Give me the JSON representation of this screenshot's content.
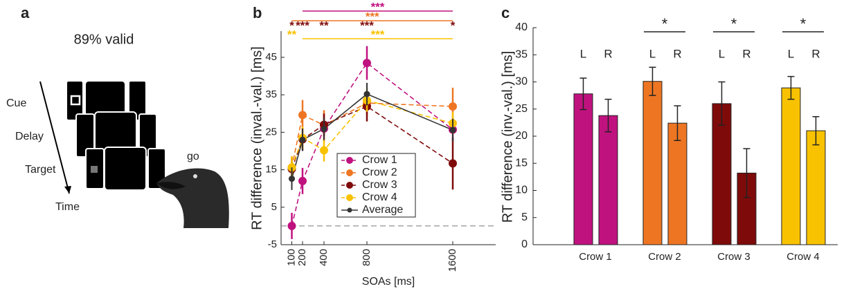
{
  "panel_labels": [
    "a",
    "b",
    "c"
  ],
  "panel_a": {
    "validity": "89% valid",
    "steps": [
      "Cue",
      "Delay",
      "Target"
    ],
    "axis": "Time",
    "response": "go"
  },
  "chart_data": [
    {
      "type": "line",
      "x_label": "SOAs [ms]",
      "y_label": "RT difference (inval.-val.) [ms]",
      "x": [
        100,
        200,
        400,
        800,
        1600
      ],
      "xlim": [
        0,
        2000
      ],
      "xticks": [
        100,
        200,
        400,
        800,
        1600
      ],
      "ylim": [
        -5,
        52
      ],
      "yticks": [
        -5,
        5,
        15,
        25,
        35,
        45
      ],
      "reference_line": 0,
      "series": [
        {
          "name": "Crow 1",
          "color": "#c0127f",
          "line_style": "dashed",
          "values": [
            0,
            12,
            26,
            43.5,
            25.7
          ],
          "errors": [
            3.5,
            3.5,
            3.5,
            4.5,
            3
          ]
        },
        {
          "name": "Crow 2",
          "color": "#ee7623",
          "line_style": "dashed",
          "values": [
            15.6,
            29.6,
            26.9,
            32.8,
            31.9
          ],
          "errors": [
            3,
            4,
            4,
            3,
            5
          ]
        },
        {
          "name": "Crow 3",
          "color": "#7f0a0a",
          "line_style": "dashed",
          "values": [
            15.2,
            23.1,
            27,
            31.9,
            16.7
          ],
          "errors": [
            3,
            3,
            3,
            4,
            7
          ]
        },
        {
          "name": "Crow 4",
          "color": "#f8c200",
          "line_style": "dashed",
          "values": [
            15.6,
            23.5,
            20.2,
            33.5,
            27.4
          ],
          "errors": [
            3,
            3,
            3,
            3,
            3
          ]
        },
        {
          "name": "Average",
          "color": "#333333",
          "line_style": "solid",
          "values": [
            12.6,
            23,
            25.9,
            35.2,
            25.6
          ],
          "errors": [
            3,
            3,
            3,
            3,
            3
          ]
        }
      ],
      "legend": "lower-center",
      "significance": [
        {
          "color": "#c0127f",
          "span": [
            200,
            1600
          ],
          "marks": [
            {
              "text": "***"
            }
          ]
        },
        {
          "color": "#ee7623",
          "span": [
            100,
            1600
          ],
          "marks": [
            {
              "text": "***"
            }
          ]
        },
        {
          "color": "#7f0a0a",
          "marks": [
            {
              "x": 100,
              "text": "*"
            },
            {
              "x": 200,
              "text": "***"
            },
            {
              "x": 400,
              "text": "**"
            },
            {
              "x": 800,
              "text": "***"
            },
            {
              "x": 1600,
              "text": "*"
            }
          ]
        },
        {
          "color": "#f8c200",
          "span": [
            200,
            1600
          ],
          "marks": [
            {
              "x": 100,
              "text": "**"
            },
            {
              "text": "***"
            }
          ]
        }
      ]
    },
    {
      "type": "bar",
      "y_label": "RT difference (inv.-val.) [ms]",
      "categories": [
        "Crow 1",
        "Crow 2",
        "Crow 3",
        "Crow 4"
      ],
      "colors": [
        "#c0127f",
        "#ee7623",
        "#7f0a0a",
        "#f8c200"
      ],
      "ylim": [
        0,
        40
      ],
      "yticks": [
        0,
        5,
        10,
        15,
        20,
        25,
        30,
        35,
        40
      ],
      "series": [
        {
          "name": "L",
          "values": [
            27.8,
            30.1,
            26,
            28.9
          ],
          "errors": [
            2.9,
            2.6,
            4,
            2.1
          ]
        },
        {
          "name": "R",
          "values": [
            23.8,
            22.4,
            13.2,
            21
          ],
          "errors": [
            3,
            3.2,
            4.5,
            2.6
          ]
        }
      ],
      "significance": [
        null,
        "*",
        "*",
        "*"
      ]
    }
  ]
}
